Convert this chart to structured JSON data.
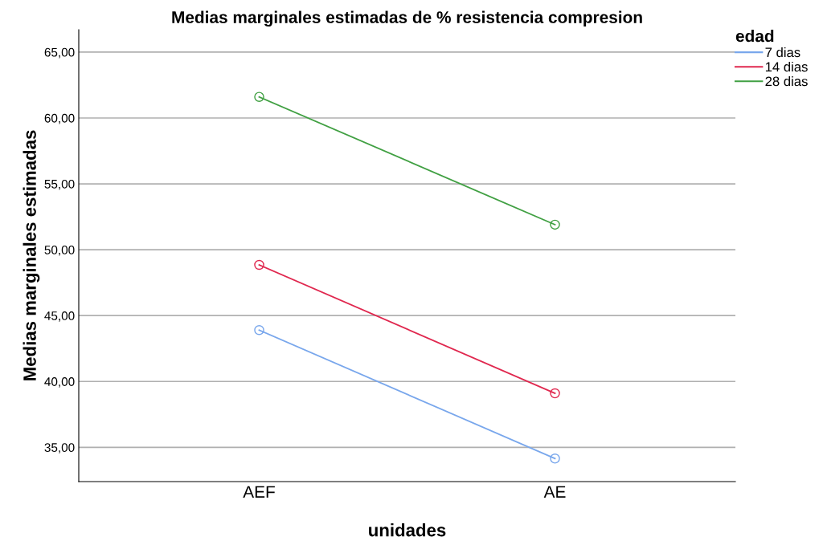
{
  "chart_data": {
    "type": "line",
    "title": "Medias marginales estimadas de % resistencia compresion",
    "xlabel": "unidades",
    "ylabel": "Medias marginales estimadas",
    "legend_title": "edad",
    "categories": [
      "AEF",
      "AE"
    ],
    "series": [
      {
        "name": "7 dias",
        "color": "#79a7ec",
        "values": [
          43.9,
          34.15
        ]
      },
      {
        "name": "14 dias",
        "color": "#e0284f",
        "values": [
          48.85,
          39.1
        ]
      },
      {
        "name": "28 dias",
        "color": "#41a043",
        "values": [
          61.6,
          51.9
        ]
      }
    ],
    "ylim": [
      32.4,
      66.7
    ],
    "yticks": [
      {
        "value": 35,
        "label": "35,00"
      },
      {
        "value": 40,
        "label": "40,00"
      },
      {
        "value": 45,
        "label": "45,00"
      },
      {
        "value": 50,
        "label": "50,00"
      },
      {
        "value": 55,
        "label": "55,00"
      },
      {
        "value": 60,
        "label": "60,00"
      },
      {
        "value": 65,
        "label": "65,00"
      }
    ],
    "grid": "y",
    "legend": "right",
    "marker": "circle",
    "line_style": "solid"
  }
}
